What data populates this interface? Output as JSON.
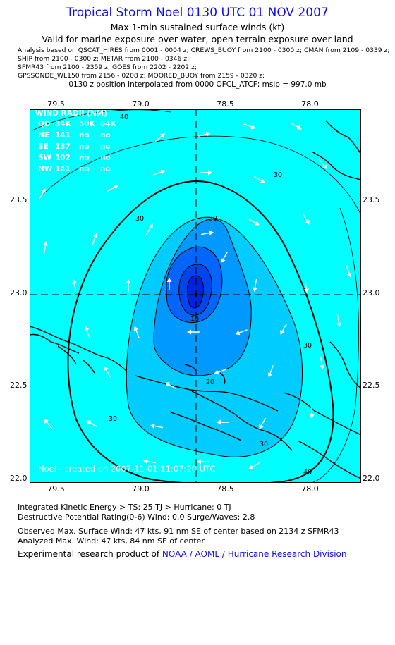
{
  "header": {
    "title": "Tropical Storm Noel 0130 UTC 01 NOV 2007",
    "subtitle": "Max 1-min sustained surface winds (kt)",
    "valid_line": "Valid for marine exposure over water, open terrain exposure over land"
  },
  "analysis_lines": [
    "Analysis based on  QSCAT_HIRES from 0001 - 0004 z;  CREWS_BUOY from 2100 - 0300 z;  CMAN from 2109 - 0339 z;",
    "SHIP from 2100 - 0300 z;  METAR from 2100 - 0346 z;",
    "SFMR43 from 2100 - 2359 z;  GOES from 2202 - 2202 z;",
    "GPSSONDE_WL150 from 2156 - 0208 z;  MOORED_BUOY from 2159 - 0320 z;"
  ],
  "position_line": "0130 z position interpolated from 0000 OFCL_ATCF; mslp = 997.0 mb",
  "map": {
    "lon_ticks": [
      "−79.5",
      "−79.0",
      "−78.5",
      "−78.0"
    ],
    "lat_ticks": [
      "23.5",
      "23.0",
      "22.5",
      "22.0"
    ],
    "lon_range": [
      -79.8,
      -77.8
    ],
    "lat_range": [
      22.0,
      24.0
    ],
    "center": {
      "lon": -78.65,
      "lat": 22.98
    },
    "contour_labels": [
      "40",
      "30",
      "30",
      "30",
      "30",
      "20",
      "20",
      "10",
      "30",
      "40"
    ],
    "fill_colors": [
      "#00ffff",
      "#00ccff",
      "#0099ff",
      "#0066ff",
      "#0044ee",
      "#0022dd"
    ]
  },
  "wind_radii": {
    "title": "WIND RADII (NM)",
    "header": [
      "QD",
      "34K",
      "50K",
      "64K"
    ],
    "rows": [
      [
        "NE",
        "141",
        "no",
        "no"
      ],
      [
        "SE",
        "137",
        "no",
        "no"
      ],
      [
        "SW",
        "102",
        "no",
        "no"
      ],
      [
        "NW",
        "141",
        "no",
        "no"
      ]
    ]
  },
  "created_text": "Noel - created on 2007-11-01  11:07:20 UTC",
  "footer": {
    "ike": "Integrated Kinetic Energy > TS: 25 TJ   > Hurricane: 0 TJ",
    "dpr": "Destructive Potential Rating(0-6)   Wind: 0.0 Surge/Waves: 2.8",
    "obs": "Observed Max. Surface Wind: 47 kts, 91 nm SE of center based on 2134 z SFMR43",
    "ana": "Analyzed Max. Wind: 47 kts, 84 nm SE of center",
    "exp_prefix": "Experimental research product of ",
    "exp_org": "NOAA / AOML / Hurricane Research Division"
  }
}
